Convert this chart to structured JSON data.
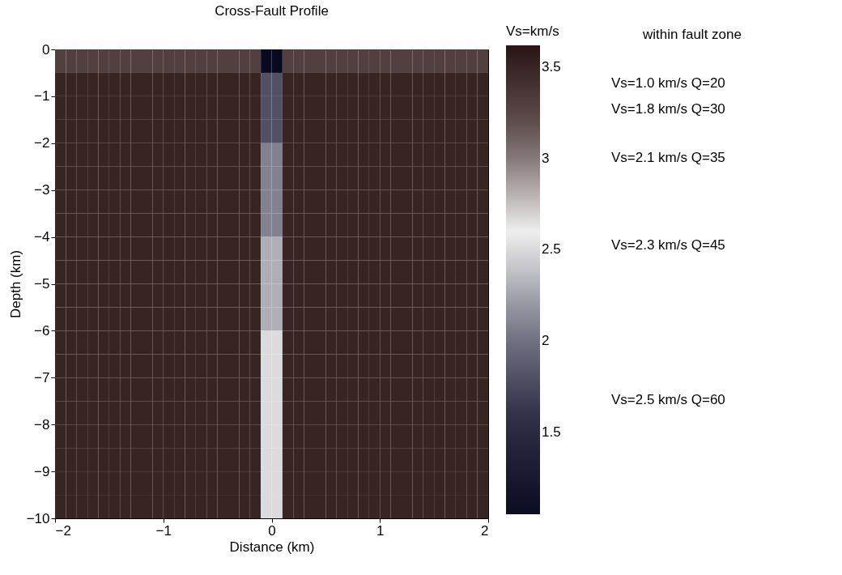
{
  "chart_data": {
    "type": "heatmap",
    "title": "Cross-Fault Profile",
    "xlabel": "Distance (km)",
    "ylabel": "Depth (km)",
    "clabel": "Vs=km/s",
    "x": [
      -1.95,
      -1.85,
      -1.75,
      -1.65,
      -1.55,
      -1.45,
      -1.35,
      -1.25,
      -1.15,
      -1.05,
      -0.95,
      -0.85,
      -0.75,
      -0.65,
      -0.55,
      -0.45,
      -0.35,
      -0.25,
      -0.15,
      -0.05,
      0.05,
      0.15,
      0.25,
      0.35,
      0.45,
      0.55,
      0.65,
      0.75,
      0.85,
      0.95,
      1.05,
      1.15,
      1.25,
      1.35,
      1.45,
      1.55,
      1.65,
      1.75,
      1.85,
      1.95
    ],
    "y": [
      -0.25,
      -0.75,
      -1.25,
      -1.75,
      -2.25,
      -2.75,
      -3.25,
      -3.75,
      -4.25,
      -4.75,
      -5.25,
      -5.75,
      -6.25,
      -6.75,
      -7.25,
      -7.75,
      -8.25,
      -8.75,
      -9.25,
      -9.75
    ],
    "cells": [
      [
        3.3,
        3.3,
        3.3,
        3.3,
        3.3,
        3.3,
        3.3,
        3.3,
        3.3,
        3.3,
        3.3,
        3.3,
        3.3,
        3.3,
        3.3,
        3.3,
        3.3,
        3.3,
        3.3,
        1.0,
        1.0,
        3.3,
        3.3,
        3.3,
        3.3,
        3.3,
        3.3,
        3.3,
        3.3,
        3.3,
        3.3,
        3.3,
        3.3,
        3.3,
        3.3,
        3.3,
        3.3,
        3.3,
        3.3,
        3.3
      ],
      [
        3.5,
        3.5,
        3.5,
        3.5,
        3.5,
        3.5,
        3.5,
        3.5,
        3.5,
        3.5,
        3.5,
        3.5,
        3.5,
        3.5,
        3.5,
        3.5,
        3.5,
        3.5,
        3.5,
        1.8,
        1.8,
        3.5,
        3.5,
        3.5,
        3.5,
        3.5,
        3.5,
        3.5,
        3.5,
        3.5,
        3.5,
        3.5,
        3.5,
        3.5,
        3.5,
        3.5,
        3.5,
        3.5,
        3.5,
        3.5
      ],
      [
        3.5,
        3.5,
        3.5,
        3.5,
        3.5,
        3.5,
        3.5,
        3.5,
        3.5,
        3.5,
        3.5,
        3.5,
        3.5,
        3.5,
        3.5,
        3.5,
        3.5,
        3.5,
        3.5,
        1.8,
        1.8,
        3.5,
        3.5,
        3.5,
        3.5,
        3.5,
        3.5,
        3.5,
        3.5,
        3.5,
        3.5,
        3.5,
        3.5,
        3.5,
        3.5,
        3.5,
        3.5,
        3.5,
        3.5,
        3.5
      ],
      [
        3.5,
        3.5,
        3.5,
        3.5,
        3.5,
        3.5,
        3.5,
        3.5,
        3.5,
        3.5,
        3.5,
        3.5,
        3.5,
        3.5,
        3.5,
        3.5,
        3.5,
        3.5,
        3.5,
        1.8,
        1.8,
        3.5,
        3.5,
        3.5,
        3.5,
        3.5,
        3.5,
        3.5,
        3.5,
        3.5,
        3.5,
        3.5,
        3.5,
        3.5,
        3.5,
        3.5,
        3.5,
        3.5,
        3.5,
        3.5
      ],
      [
        3.5,
        3.5,
        3.5,
        3.5,
        3.5,
        3.5,
        3.5,
        3.5,
        3.5,
        3.5,
        3.5,
        3.5,
        3.5,
        3.5,
        3.5,
        3.5,
        3.5,
        3.5,
        3.5,
        2.1,
        2.1,
        3.5,
        3.5,
        3.5,
        3.5,
        3.5,
        3.5,
        3.5,
        3.5,
        3.5,
        3.5,
        3.5,
        3.5,
        3.5,
        3.5,
        3.5,
        3.5,
        3.5,
        3.5,
        3.5
      ],
      [
        3.5,
        3.5,
        3.5,
        3.5,
        3.5,
        3.5,
        3.5,
        3.5,
        3.5,
        3.5,
        3.5,
        3.5,
        3.5,
        3.5,
        3.5,
        3.5,
        3.5,
        3.5,
        3.5,
        2.1,
        2.1,
        3.5,
        3.5,
        3.5,
        3.5,
        3.5,
        3.5,
        3.5,
        3.5,
        3.5,
        3.5,
        3.5,
        3.5,
        3.5,
        3.5,
        3.5,
        3.5,
        3.5,
        3.5,
        3.5
      ],
      [
        3.5,
        3.5,
        3.5,
        3.5,
        3.5,
        3.5,
        3.5,
        3.5,
        3.5,
        3.5,
        3.5,
        3.5,
        3.5,
        3.5,
        3.5,
        3.5,
        3.5,
        3.5,
        3.5,
        2.1,
        2.1,
        3.5,
        3.5,
        3.5,
        3.5,
        3.5,
        3.5,
        3.5,
        3.5,
        3.5,
        3.5,
        3.5,
        3.5,
        3.5,
        3.5,
        3.5,
        3.5,
        3.5,
        3.5,
        3.5
      ],
      [
        3.5,
        3.5,
        3.5,
        3.5,
        3.5,
        3.5,
        3.5,
        3.5,
        3.5,
        3.5,
        3.5,
        3.5,
        3.5,
        3.5,
        3.5,
        3.5,
        3.5,
        3.5,
        3.5,
        2.1,
        2.1,
        3.5,
        3.5,
        3.5,
        3.5,
        3.5,
        3.5,
        3.5,
        3.5,
        3.5,
        3.5,
        3.5,
        3.5,
        3.5,
        3.5,
        3.5,
        3.5,
        3.5,
        3.5,
        3.5
      ],
      [
        3.5,
        3.5,
        3.5,
        3.5,
        3.5,
        3.5,
        3.5,
        3.5,
        3.5,
        3.5,
        3.5,
        3.5,
        3.5,
        3.5,
        3.5,
        3.5,
        3.5,
        3.5,
        3.5,
        2.3,
        2.3,
        3.5,
        3.5,
        3.5,
        3.5,
        3.5,
        3.5,
        3.5,
        3.5,
        3.5,
        3.5,
        3.5,
        3.5,
        3.5,
        3.5,
        3.5,
        3.5,
        3.5,
        3.5,
        3.5
      ],
      [
        3.5,
        3.5,
        3.5,
        3.5,
        3.5,
        3.5,
        3.5,
        3.5,
        3.5,
        3.5,
        3.5,
        3.5,
        3.5,
        3.5,
        3.5,
        3.5,
        3.5,
        3.5,
        3.5,
        2.3,
        2.3,
        3.5,
        3.5,
        3.5,
        3.5,
        3.5,
        3.5,
        3.5,
        3.5,
        3.5,
        3.5,
        3.5,
        3.5,
        3.5,
        3.5,
        3.5,
        3.5,
        3.5,
        3.5,
        3.5
      ],
      [
        3.5,
        3.5,
        3.5,
        3.5,
        3.5,
        3.5,
        3.5,
        3.5,
        3.5,
        3.5,
        3.5,
        3.5,
        3.5,
        3.5,
        3.5,
        3.5,
        3.5,
        3.5,
        3.5,
        2.3,
        2.3,
        3.5,
        3.5,
        3.5,
        3.5,
        3.5,
        3.5,
        3.5,
        3.5,
        3.5,
        3.5,
        3.5,
        3.5,
        3.5,
        3.5,
        3.5,
        3.5,
        3.5,
        3.5,
        3.5
      ],
      [
        3.5,
        3.5,
        3.5,
        3.5,
        3.5,
        3.5,
        3.5,
        3.5,
        3.5,
        3.5,
        3.5,
        3.5,
        3.5,
        3.5,
        3.5,
        3.5,
        3.5,
        3.5,
        3.5,
        2.3,
        2.3,
        3.5,
        3.5,
        3.5,
        3.5,
        3.5,
        3.5,
        3.5,
        3.5,
        3.5,
        3.5,
        3.5,
        3.5,
        3.5,
        3.5,
        3.5,
        3.5,
        3.5,
        3.5,
        3.5
      ],
      [
        3.5,
        3.5,
        3.5,
        3.5,
        3.5,
        3.5,
        3.5,
        3.5,
        3.5,
        3.5,
        3.5,
        3.5,
        3.5,
        3.5,
        3.5,
        3.5,
        3.5,
        3.5,
        3.5,
        2.5,
        2.5,
        3.5,
        3.5,
        3.5,
        3.5,
        3.5,
        3.5,
        3.5,
        3.5,
        3.5,
        3.5,
        3.5,
        3.5,
        3.5,
        3.5,
        3.5,
        3.5,
        3.5,
        3.5,
        3.5
      ],
      [
        3.5,
        3.5,
        3.5,
        3.5,
        3.5,
        3.5,
        3.5,
        3.5,
        3.5,
        3.5,
        3.5,
        3.5,
        3.5,
        3.5,
        3.5,
        3.5,
        3.5,
        3.5,
        3.5,
        2.5,
        2.5,
        3.5,
        3.5,
        3.5,
        3.5,
        3.5,
        3.5,
        3.5,
        3.5,
        3.5,
        3.5,
        3.5,
        3.5,
        3.5,
        3.5,
        3.5,
        3.5,
        3.5,
        3.5,
        3.5
      ],
      [
        3.5,
        3.5,
        3.5,
        3.5,
        3.5,
        3.5,
        3.5,
        3.5,
        3.5,
        3.5,
        3.5,
        3.5,
        3.5,
        3.5,
        3.5,
        3.5,
        3.5,
        3.5,
        3.5,
        2.5,
        2.5,
        3.5,
        3.5,
        3.5,
        3.5,
        3.5,
        3.5,
        3.5,
        3.5,
        3.5,
        3.5,
        3.5,
        3.5,
        3.5,
        3.5,
        3.5,
        3.5,
        3.5,
        3.5,
        3.5
      ],
      [
        3.5,
        3.5,
        3.5,
        3.5,
        3.5,
        3.5,
        3.5,
        3.5,
        3.5,
        3.5,
        3.5,
        3.5,
        3.5,
        3.5,
        3.5,
        3.5,
        3.5,
        3.5,
        3.5,
        2.5,
        2.5,
        3.5,
        3.5,
        3.5,
        3.5,
        3.5,
        3.5,
        3.5,
        3.5,
        3.5,
        3.5,
        3.5,
        3.5,
        3.5,
        3.5,
        3.5,
        3.5,
        3.5,
        3.5,
        3.5
      ],
      [
        3.5,
        3.5,
        3.5,
        3.5,
        3.5,
        3.5,
        3.5,
        3.5,
        3.5,
        3.5,
        3.5,
        3.5,
        3.5,
        3.5,
        3.5,
        3.5,
        3.5,
        3.5,
        3.5,
        2.5,
        2.5,
        3.5,
        3.5,
        3.5,
        3.5,
        3.5,
        3.5,
        3.5,
        3.5,
        3.5,
        3.5,
        3.5,
        3.5,
        3.5,
        3.5,
        3.5,
        3.5,
        3.5,
        3.5,
        3.5
      ],
      [
        3.5,
        3.5,
        3.5,
        3.5,
        3.5,
        3.5,
        3.5,
        3.5,
        3.5,
        3.5,
        3.5,
        3.5,
        3.5,
        3.5,
        3.5,
        3.5,
        3.5,
        3.5,
        3.5,
        2.5,
        2.5,
        3.5,
        3.5,
        3.5,
        3.5,
        3.5,
        3.5,
        3.5,
        3.5,
        3.5,
        3.5,
        3.5,
        3.5,
        3.5,
        3.5,
        3.5,
        3.5,
        3.5,
        3.5,
        3.5
      ],
      [
        3.5,
        3.5,
        3.5,
        3.5,
        3.5,
        3.5,
        3.5,
        3.5,
        3.5,
        3.5,
        3.5,
        3.5,
        3.5,
        3.5,
        3.5,
        3.5,
        3.5,
        3.5,
        3.5,
        2.5,
        2.5,
        3.5,
        3.5,
        3.5,
        3.5,
        3.5,
        3.5,
        3.5,
        3.5,
        3.5,
        3.5,
        3.5,
        3.5,
        3.5,
        3.5,
        3.5,
        3.5,
        3.5,
        3.5,
        3.5
      ],
      [
        3.5,
        3.5,
        3.5,
        3.5,
        3.5,
        3.5,
        3.5,
        3.5,
        3.5,
        3.5,
        3.5,
        3.5,
        3.5,
        3.5,
        3.5,
        3.5,
        3.5,
        3.5,
        3.5,
        2.5,
        2.5,
        3.5,
        3.5,
        3.5,
        3.5,
        3.5,
        3.5,
        3.5,
        3.5,
        3.5,
        3.5,
        3.5,
        3.5,
        3.5,
        3.5,
        3.5,
        3.5,
        3.5,
        3.5,
        3.5
      ]
    ],
    "clim": [
      1.05,
      3.62
    ],
    "cticks": [
      1.5,
      2,
      2.5,
      3,
      3.5
    ],
    "colors": [
      "#0c0c22",
      "#2c2c44",
      "#7c7c8c",
      "#f0f0f0",
      "#6a5a5a",
      "#2a1414"
    ],
    "xlim": [
      -2,
      2
    ],
    "xticks": [
      -2,
      -1,
      0,
      1,
      2
    ],
    "ylim": [
      -10,
      0
    ],
    "yticks": [
      -10,
      -9,
      -8,
      -7,
      -6,
      -5,
      -4,
      -3,
      -2,
      -1,
      0
    ],
    "grid": false,
    "annotations": [
      "within fault zone",
      "Vs=1.0 km/s  Q=20",
      "Vs=1.8 km/s  Q=30",
      "Vs=2.1 km/s  Q=35",
      "Vs=2.3 km/s  Q=45",
      "Vs=2.5 km/s  Q=60"
    ]
  }
}
